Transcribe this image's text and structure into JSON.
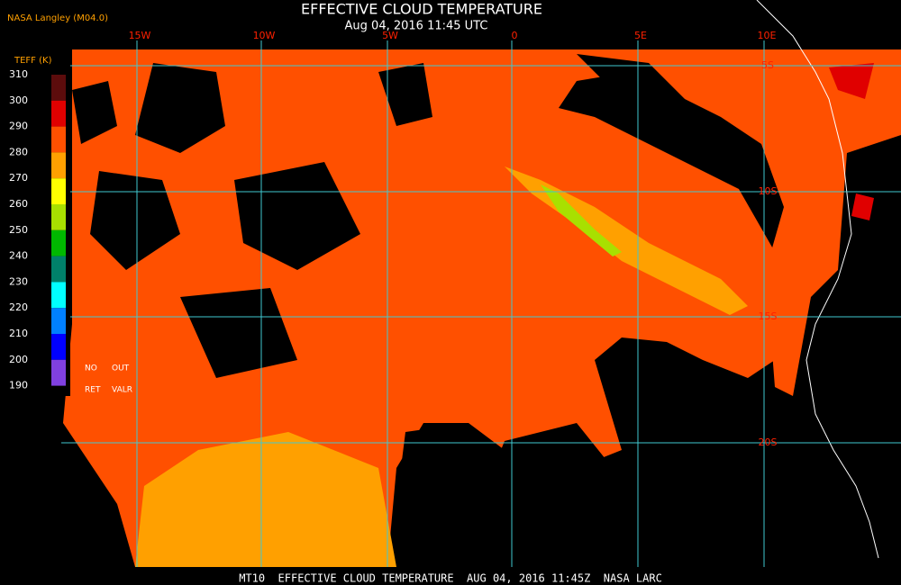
{
  "header": {
    "title": "EFFECTIVE CLOUD TEMPERATURE",
    "subtitle": "Aug 04, 2016 11:45 UTC",
    "source": "NASA Langley (M04.0)"
  },
  "colorbar": {
    "title": "TEFF (K)",
    "labels": [
      "310",
      "300",
      "290",
      "280",
      "270",
      "260",
      "250",
      "240",
      "230",
      "220",
      "210",
      "200",
      "190"
    ],
    "colors": [
      "#5c0c0c",
      "#e00000",
      "#ff5000",
      "#ffa000",
      "#ffff00",
      "#a8e000",
      "#00b800",
      "#00806a",
      "#00ffff",
      "#0080ff",
      "#0000ff",
      "#8040e0"
    ],
    "notes": [
      "NO",
      "OUT",
      "RET",
      "VALR"
    ]
  },
  "longitude_labels": [
    "15W",
    "10W",
    "5W",
    "0",
    "5E",
    "10E"
  ],
  "latitude_labels": [
    "5S",
    "10S",
    "15S",
    "20S"
  ],
  "footer": "MT10  EFFECTIVE CLOUD TEMPERATURE  AUG 04, 2016 11:45Z  NASA LARC"
}
